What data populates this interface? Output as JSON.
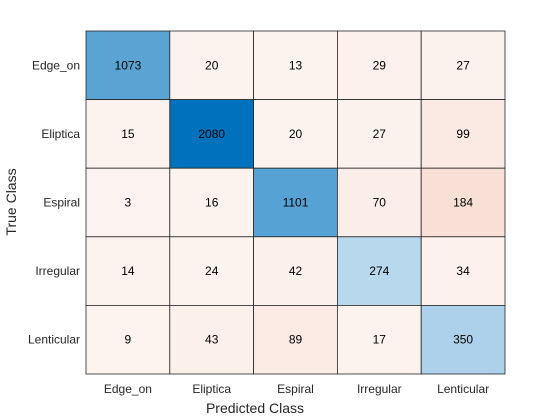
{
  "chart_data": {
    "type": "heatmap",
    "title": "",
    "xlabel": "Predicted Class",
    "ylabel": "True Class",
    "x_categories": [
      "Edge_on",
      "Eliptica",
      "Espiral",
      "Irregular",
      "Lenticular"
    ],
    "y_categories": [
      "Edge_on",
      "Eliptica",
      "Espiral",
      "Irregular",
      "Lenticular"
    ],
    "values": [
      [
        1073,
        20,
        13,
        29,
        27
      ],
      [
        15,
        2080,
        20,
        27,
        99
      ],
      [
        3,
        16,
        1101,
        70,
        184
      ],
      [
        14,
        24,
        42,
        274,
        34
      ],
      [
        9,
        43,
        89,
        17,
        350
      ]
    ],
    "colors": {
      "diagonal_max": "#0072bd",
      "off_diagonal_max": "#d95319",
      "background": "#ffffff",
      "grid": "#262626"
    },
    "grid": true,
    "legend": "none"
  }
}
